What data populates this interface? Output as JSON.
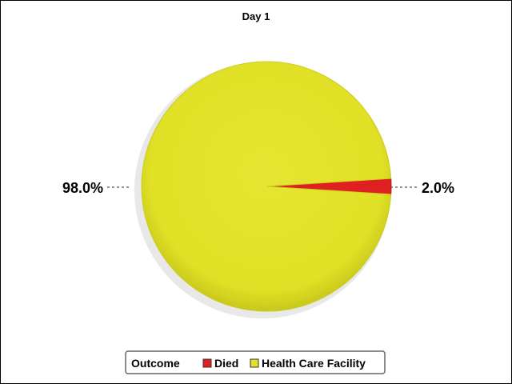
{
  "chart_data": {
    "type": "pie",
    "title": "Day 1",
    "categories": [
      "Died",
      "Health Care Facility"
    ],
    "values": [
      2.0,
      98.0
    ],
    "value_labels": [
      "2.0%",
      "98.0%"
    ],
    "colors": [
      "#e02020",
      "#e2e228"
    ],
    "legend": {
      "title": "Outcome",
      "placement": "bottom",
      "entries": [
        "Died",
        "Health Care Facility"
      ]
    }
  }
}
